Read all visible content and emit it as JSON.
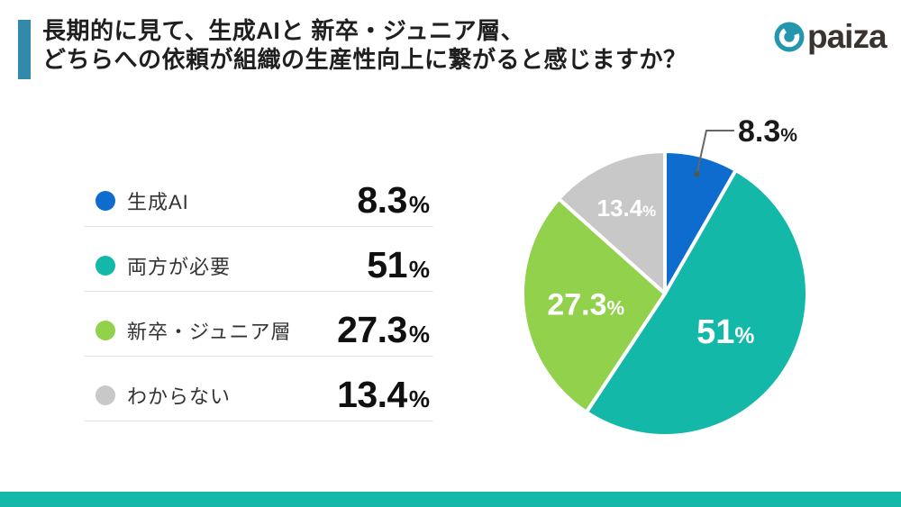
{
  "header": {
    "title_line1": "長期的に見て、生成AIと 新卒・ジュニア層、",
    "title_line2": "どちらへの依頼が組織の生産性向上に繋がると感じますか？",
    "logo_text": "paiza"
  },
  "legend": {
    "items": [
      {
        "label": "生成AI",
        "value": "8.3",
        "unit": "%"
      },
      {
        "label": "両方が必要",
        "value": "51",
        "unit": "%"
      },
      {
        "label": "新卒・ジュニア層",
        "value": "27.3",
        "unit": "%"
      },
      {
        "label": "わからない",
        "value": "13.4",
        "unit": "%"
      }
    ]
  },
  "chart_data": {
    "type": "pie",
    "title": "長期的に見て、生成AIと新卒・ジュニア層、どちらへの依頼が組織の生産性向上に繋がると感じますか？",
    "categories": [
      "生成AI",
      "両方が必要",
      "新卒・ジュニア層",
      "わからない"
    ],
    "values": [
      8.3,
      51,
      27.3,
      13.4
    ],
    "unit": "%",
    "slice_labels": [
      "8.3%",
      "51%",
      "27.3%",
      "13.4%"
    ],
    "colors": [
      "#0D6CCE",
      "#14B8A8",
      "#91D14B",
      "#C8C8C8"
    ],
    "start_angle": "12-oclock",
    "direction": "clockwise",
    "legend_position": "left",
    "label_color_inside": "#FFFFFF",
    "label_color_outside": "#1A1A1A"
  },
  "colors": {
    "accent_bar": "#3389AB",
    "footer_bar": "#14B8A8",
    "logo_circle": "#2497AE",
    "leader_line": "#666666",
    "leader_dot": "#555555",
    "divider": "#E3E3E3"
  }
}
